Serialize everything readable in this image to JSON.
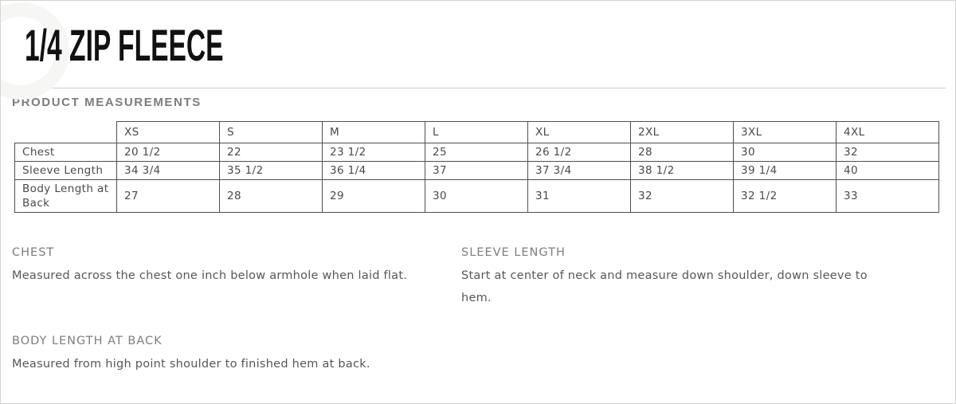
{
  "page": {
    "title": "1/4 ZIP FLEECE",
    "section_heading": "PRODUCT MEASUREMENTS"
  },
  "table": {
    "columns": [
      "XS",
      "S",
      "M",
      "L",
      "XL",
      "2XL",
      "3XL",
      "4XL"
    ],
    "rows": [
      {
        "label": "Chest",
        "values": [
          "20 1/2",
          "22",
          "23 1/2",
          "25",
          "26 1/2",
          "28",
          "30",
          "32"
        ]
      },
      {
        "label": "Sleeve Length",
        "values": [
          "34 3/4",
          "35 1/2",
          "36 1/4",
          "37",
          "37 3/4",
          "38 1/2",
          "39 1/4",
          "40"
        ]
      },
      {
        "label": "Body Length at Back",
        "values": [
          "27",
          "28",
          "29",
          "30",
          "31",
          "32",
          "32 1/2",
          "33"
        ]
      }
    ]
  },
  "descriptions": [
    {
      "heading": "CHEST",
      "text": "Measured across the chest one inch below armhole when laid flat."
    },
    {
      "heading": "SLEEVE LENGTH",
      "text": "Start at center of neck and measure down shoulder, down sleeve to\nhem."
    },
    {
      "heading": "BODY LENGTH AT BACK",
      "text": "Measured from high point shoulder to finished hem at back."
    }
  ],
  "colors": {
    "title": "#111111",
    "section_heading": "#7c7c7c",
    "table_border": "#4f4f4f",
    "table_text": "#4a4a4a",
    "desc_heading": "#7e7e7e",
    "desc_text": "#575757",
    "card_border": "#d5d5d5"
  }
}
